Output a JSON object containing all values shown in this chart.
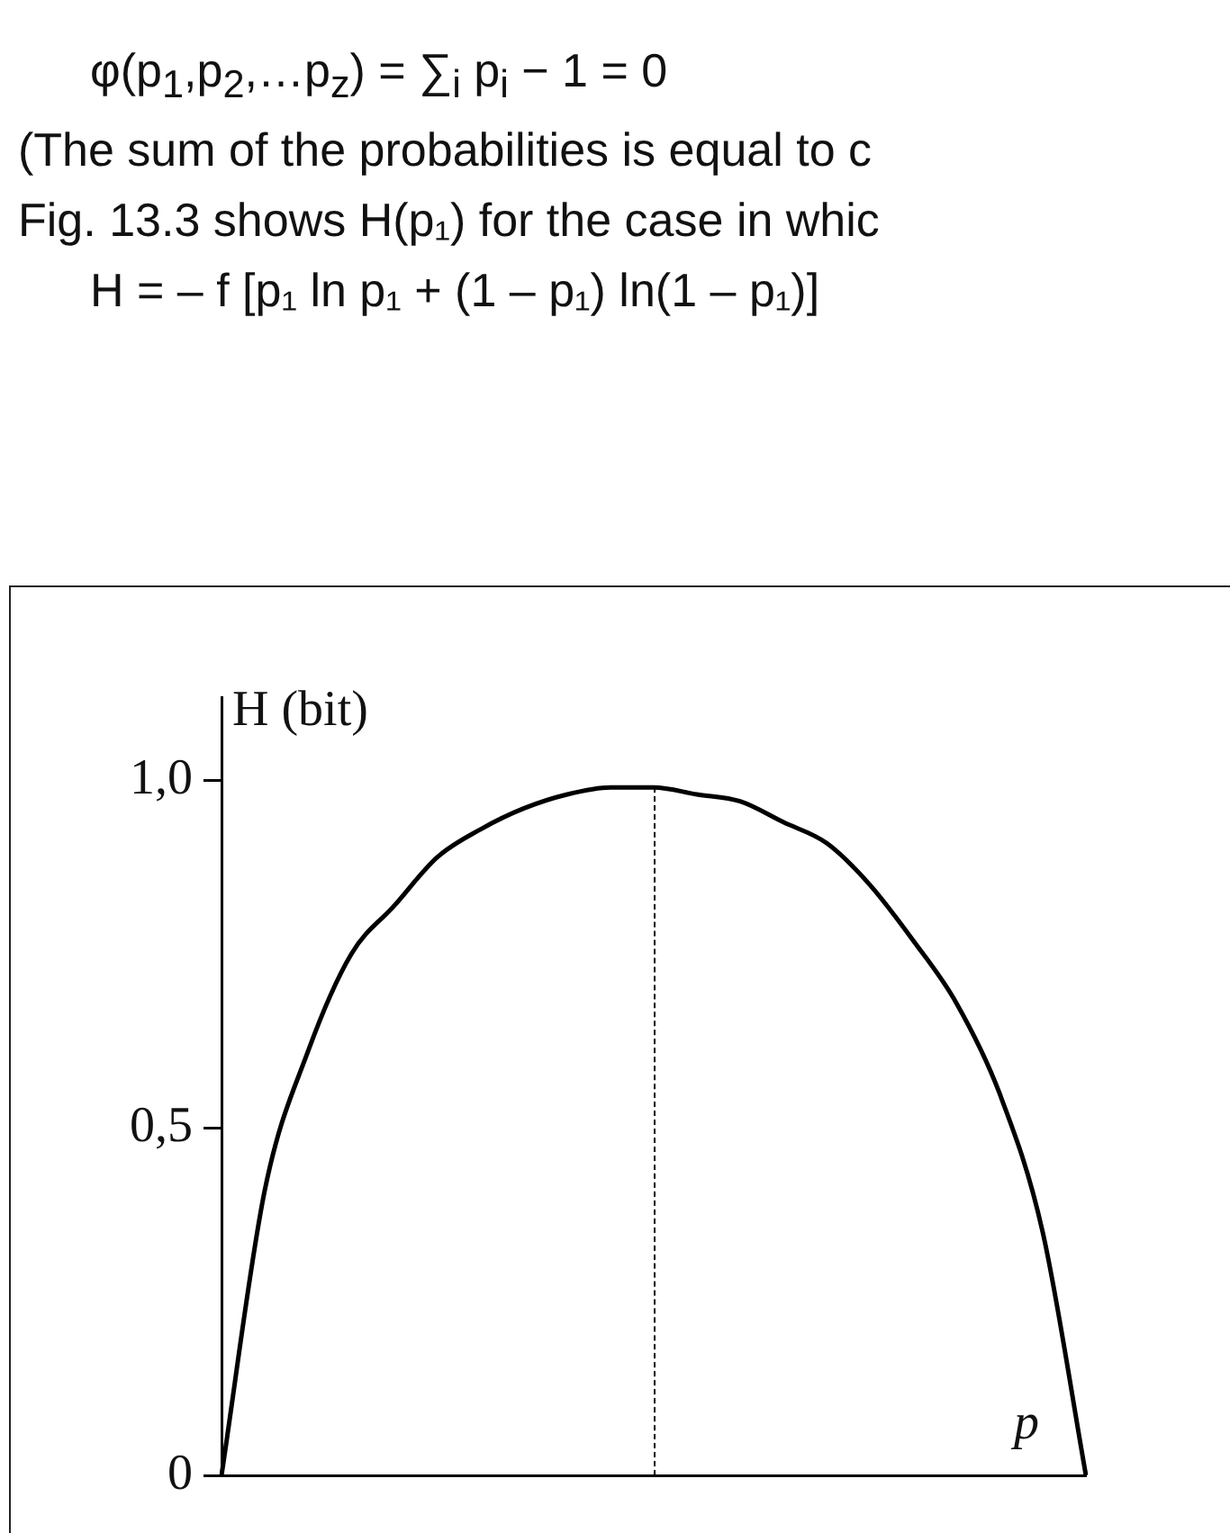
{
  "chart_data": {
    "type": "line",
    "ylabel": "H (bit)",
    "xlabel": "p",
    "annotations": [
      "φ(p$_{1}$,p$_{2}$,…p$_{z}$) = ∑$_{i}$ p$_{i}$ − 1 = 0",
      "(The sum of the probabilities is equal to c",
      "Fig. 13.3 shows H(p₁) for the case in whic",
      "H = – f [p₁ ln p₁ + (1 – p₁) ln(1 – p₁)]"
    ],
    "categories": [
      null,
      null,
      null,
      null,
      null,
      null,
      null,
      null,
      null,
      null,
      null,
      null,
      null,
      null,
      null,
      null,
      null,
      null,
      null,
      null,
      null
    ],
    "series": [
      {
        "color": "#000000",
        "values": [
          0,
          0.41,
          0.61,
          0.75,
          0.82,
          0.89,
          0.93,
          0.96,
          0.98,
          0.99,
          0.99,
          0.98,
          0.97,
          0.94,
          0.91,
          0.85,
          0.77,
          0.68,
          0.55,
          0.35,
          0
        ]
      }
    ],
    "ylim": [
      0,
      1.12
    ],
    "yticks": [
      {
        "value": 0,
        "label": "0"
      },
      {
        "value": 0.5,
        "label": "0,5"
      },
      {
        "value": 1,
        "label": "1,0"
      }
    ],
    "tick_labels": "y",
    "grid": false,
    "legend": false,
    "marker": "none",
    "line_style": "solid"
  }
}
